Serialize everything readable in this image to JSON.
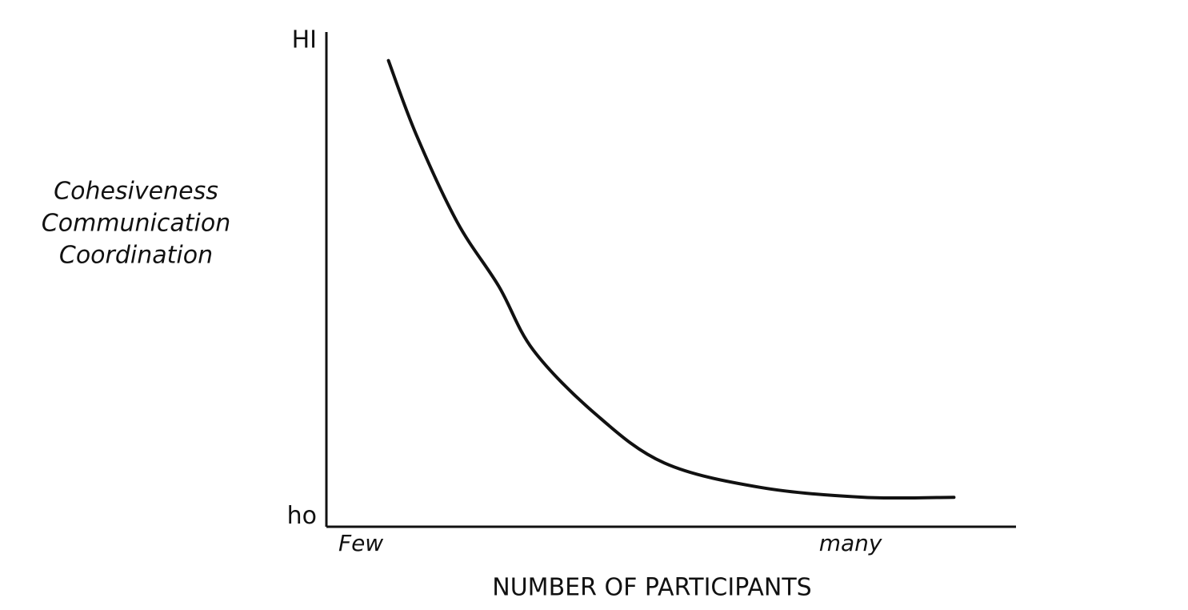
{
  "chart_data": {
    "type": "line",
    "ylabel": [
      "Cohesiveness",
      "Communication",
      "Coordination"
    ],
    "xlabel": "NUMBER OF PARTICIPANTS",
    "x": [
      9,
      13,
      19,
      25,
      30,
      39,
      49,
      63,
      78,
      91
    ],
    "values": [
      95,
      80,
      62,
      49,
      36,
      23,
      13,
      8,
      6,
      6
    ],
    "color": "#111111",
    "xlim": [
      0,
      100
    ],
    "ylim": [
      0,
      100
    ],
    "xticks": [
      {
        "value": 5,
        "label": "Few"
      },
      {
        "value": 76,
        "label": "many"
      }
    ],
    "yticks": [
      {
        "value": 2,
        "label": "ho"
      },
      {
        "value": 99,
        "label": "HI"
      }
    ],
    "grid": false
  }
}
